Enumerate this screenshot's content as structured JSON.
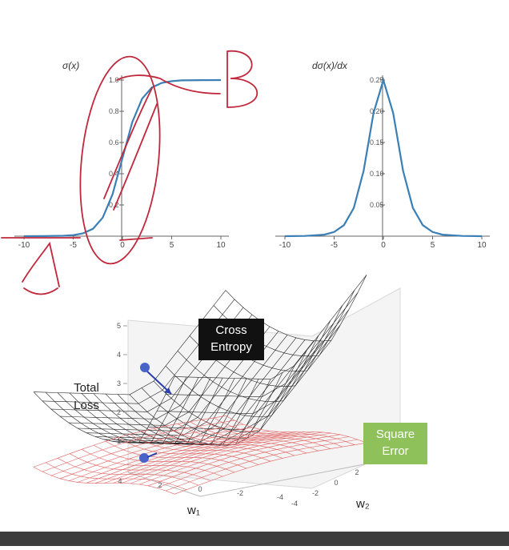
{
  "chart_data": [
    {
      "type": "line",
      "title": "σ(x)",
      "x": [
        -10,
        -8,
        -6,
        -5,
        -4,
        -3,
        -2,
        -1,
        0,
        1,
        2,
        3,
        4,
        5,
        6,
        8,
        10
      ],
      "series": [
        {
          "values": [
            4.54e-05,
            0.000335,
            0.00247,
            0.00669,
            0.018,
            0.0474,
            0.119,
            0.269,
            0.5,
            0.731,
            0.881,
            0.953,
            0.982,
            0.993,
            0.998,
            0.9997,
            0.99995
          ]
        }
      ],
      "xticks": [
        "-10",
        "-5",
        "0",
        "5",
        "10"
      ],
      "yticks": [
        "0.2",
        "0.4",
        "0.6",
        "0.8",
        "1.0"
      ],
      "xlim": [
        -10,
        10
      ],
      "ylim": [
        0,
        1
      ],
      "color": "#3a7fb5"
    },
    {
      "type": "line",
      "title": "dσ(x)/dx",
      "x": [
        -10,
        -8,
        -6,
        -5,
        -4,
        -3,
        -2,
        -1,
        0,
        1,
        2,
        3,
        4,
        5,
        6,
        8,
        10
      ],
      "series": [
        {
          "values": [
            4.54e-05,
            0.000335,
            0.00247,
            0.00665,
            0.0177,
            0.0452,
            0.105,
            0.197,
            0.25,
            0.197,
            0.105,
            0.0452,
            0.0177,
            0.00665,
            0.00247,
            0.000335,
            4.54e-05
          ]
        }
      ],
      "xticks": [
        "-10",
        "-5",
        "0",
        "5",
        "10"
      ],
      "yticks": [
        "0.05",
        "0.10",
        "0.15",
        "0.20",
        "0.25"
      ],
      "xlim": [
        -10,
        10
      ],
      "ylim": [
        0,
        0.25
      ],
      "color": "#3a7fb5"
    },
    {
      "type": "surface",
      "zlabel": "Total Loss",
      "xlabel": "w₁",
      "ylabel": "w₂",
      "zticks": [
        "1",
        "2",
        "3",
        "4",
        "5"
      ],
      "xticks": [
        "4",
        "2",
        "0",
        "-2",
        "-4"
      ],
      "yticks": [
        "-4",
        "-2",
        "0",
        "2",
        "4"
      ],
      "series": [
        {
          "name": "Cross Entropy",
          "color": "#222222"
        },
        {
          "name": "Square Error",
          "color": "#e06060"
        }
      ]
    }
  ],
  "annotations": {
    "B": "B",
    "A": "A"
  },
  "colors": {
    "ink": "#c0283c",
    "ce_box": "#111111",
    "se_box": "#8fc15a"
  }
}
